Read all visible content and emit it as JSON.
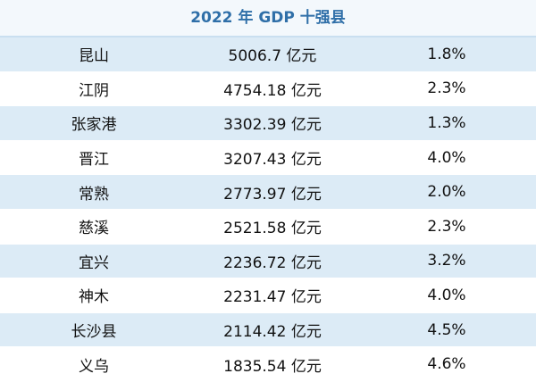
{
  "title": "2022 年 GDP 十强县",
  "table": {
    "rows": [
      [
        "昆山",
        "5006.7 亿元",
        "1.8%"
      ],
      [
        "江阴",
        "4754.18 亿元",
        "2.3%"
      ],
      [
        "张家港",
        "3302.39 亿元",
        "1.3%"
      ],
      [
        "晋江",
        "3207.43 亿元",
        "4.0%"
      ],
      [
        "常熟",
        "2773.97 亿元",
        "2.0%"
      ],
      [
        "慈溪",
        "2521.58 亿元",
        "2.3%"
      ],
      [
        "宜兴",
        "2236.72 亿元",
        "3.2%"
      ],
      [
        "神木",
        "2231.47 亿元",
        "4.0%"
      ],
      [
        "长沙县",
        "2114.42 亿元",
        "4.5%"
      ],
      [
        "义乌",
        "1835.54 亿元",
        "4.6%"
      ]
    ]
  }
}
